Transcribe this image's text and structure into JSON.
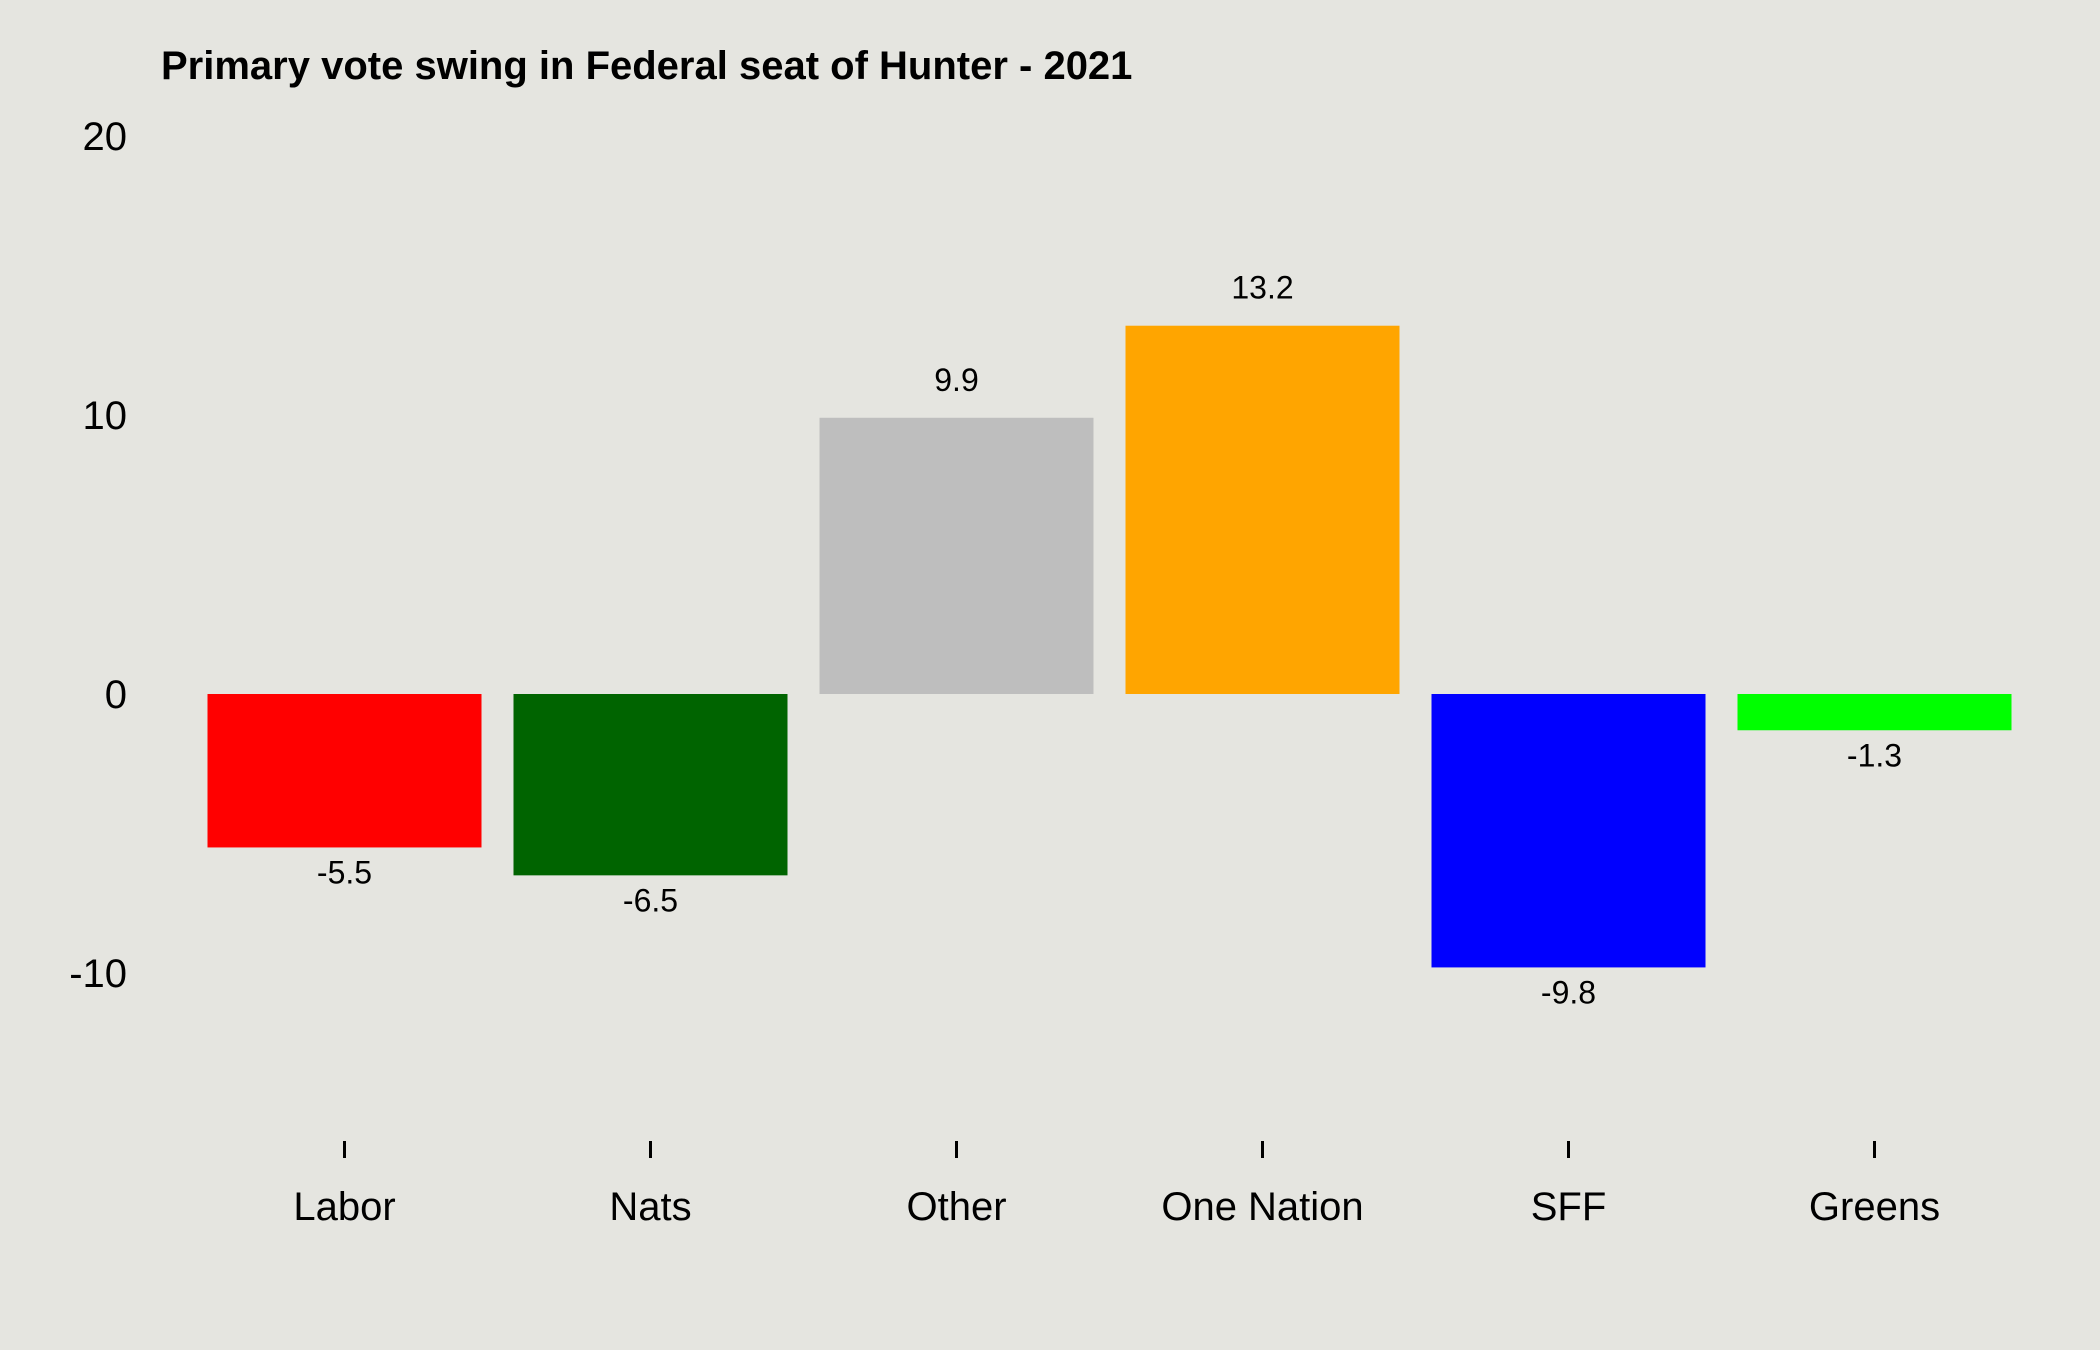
{
  "chart_data": {
    "type": "bar",
    "title": "Primary vote swing in Federal seat of Hunter - 2021",
    "xlabel": "",
    "ylabel": "",
    "categories": [
      "Labor",
      "Nats",
      "Other",
      "One Nation",
      "SFF",
      "Greens"
    ],
    "values": [
      -5.5,
      -6.5,
      9.9,
      13.2,
      -9.8,
      -1.3
    ],
    "value_labels": [
      "-5.5",
      "-6.5",
      "9.9",
      "13.2",
      "-9.8",
      "-1.3"
    ],
    "colors": [
      "#ff0000",
      "#006400",
      "#bebebe",
      "#ffa500",
      "#0000ff",
      "#00ff00"
    ],
    "ylim": [
      -16,
      20
    ],
    "yticks": [
      20,
      10,
      0,
      -10
    ],
    "ytick_labels": [
      "20",
      "10",
      "0",
      "-10"
    ],
    "grid": false,
    "legend": "none"
  }
}
